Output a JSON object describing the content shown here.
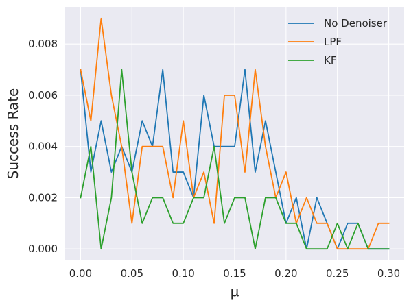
{
  "chart_data": {
    "type": "line",
    "xlabel": "μ",
    "ylabel": "Success Rate",
    "xlim": [
      -0.015,
      0.315
    ],
    "ylim": [
      -0.00045,
      0.00945
    ],
    "xticks": [
      0.0,
      0.05,
      0.1,
      0.15,
      0.2,
      0.25,
      0.3
    ],
    "xtick_labels": [
      "0.00",
      "0.05",
      "0.10",
      "0.15",
      "0.20",
      "0.25",
      "0.30"
    ],
    "yticks": [
      0.0,
      0.002,
      0.004,
      0.006,
      0.008
    ],
    "ytick_labels": [
      "0.000",
      "0.002",
      "0.004",
      "0.006",
      "0.008"
    ],
    "grid": true,
    "legend_position": "top-right",
    "x": [
      0.0,
      0.01,
      0.02,
      0.03,
      0.04,
      0.05,
      0.06,
      0.07,
      0.08,
      0.09,
      0.1,
      0.11,
      0.12,
      0.13,
      0.14,
      0.15,
      0.16,
      0.17,
      0.18,
      0.19,
      0.2,
      0.21,
      0.22,
      0.23,
      0.24,
      0.25,
      0.26,
      0.27,
      0.28,
      0.29,
      0.3
    ],
    "series": [
      {
        "name": "No Denoiser",
        "color": "#1f77b4",
        "values": [
          0.007,
          0.003,
          0.005,
          0.003,
          0.004,
          0.003,
          0.005,
          0.004,
          0.007,
          0.003,
          0.003,
          0.002,
          0.006,
          0.004,
          0.004,
          0.004,
          0.007,
          0.003,
          0.005,
          0.003,
          0.001,
          0.002,
          0.0,
          0.002,
          0.001,
          0.0,
          0.001,
          0.001,
          0.0,
          0.0,
          0.0
        ]
      },
      {
        "name": "LPF",
        "color": "#ff7f0e",
        "values": [
          0.007,
          0.005,
          0.009,
          0.006,
          0.004,
          0.001,
          0.004,
          0.004,
          0.004,
          0.002,
          0.005,
          0.002,
          0.003,
          0.001,
          0.006,
          0.006,
          0.003,
          0.007,
          0.004,
          0.002,
          0.003,
          0.001,
          0.002,
          0.001,
          0.001,
          0.0,
          0.0,
          0.0,
          0.0,
          0.001,
          0.001
        ]
      },
      {
        "name": "KF",
        "color": "#2ca02c",
        "values": [
          0.002,
          0.004,
          0.0,
          0.002,
          0.007,
          0.003,
          0.001,
          0.002,
          0.002,
          0.001,
          0.001,
          0.002,
          0.002,
          0.004,
          0.001,
          0.002,
          0.002,
          0.0,
          0.002,
          0.002,
          0.001,
          0.001,
          0.0,
          0.0,
          0.0,
          0.001,
          0.0,
          0.001,
          0.0,
          0.0,
          0.0
        ]
      }
    ]
  }
}
